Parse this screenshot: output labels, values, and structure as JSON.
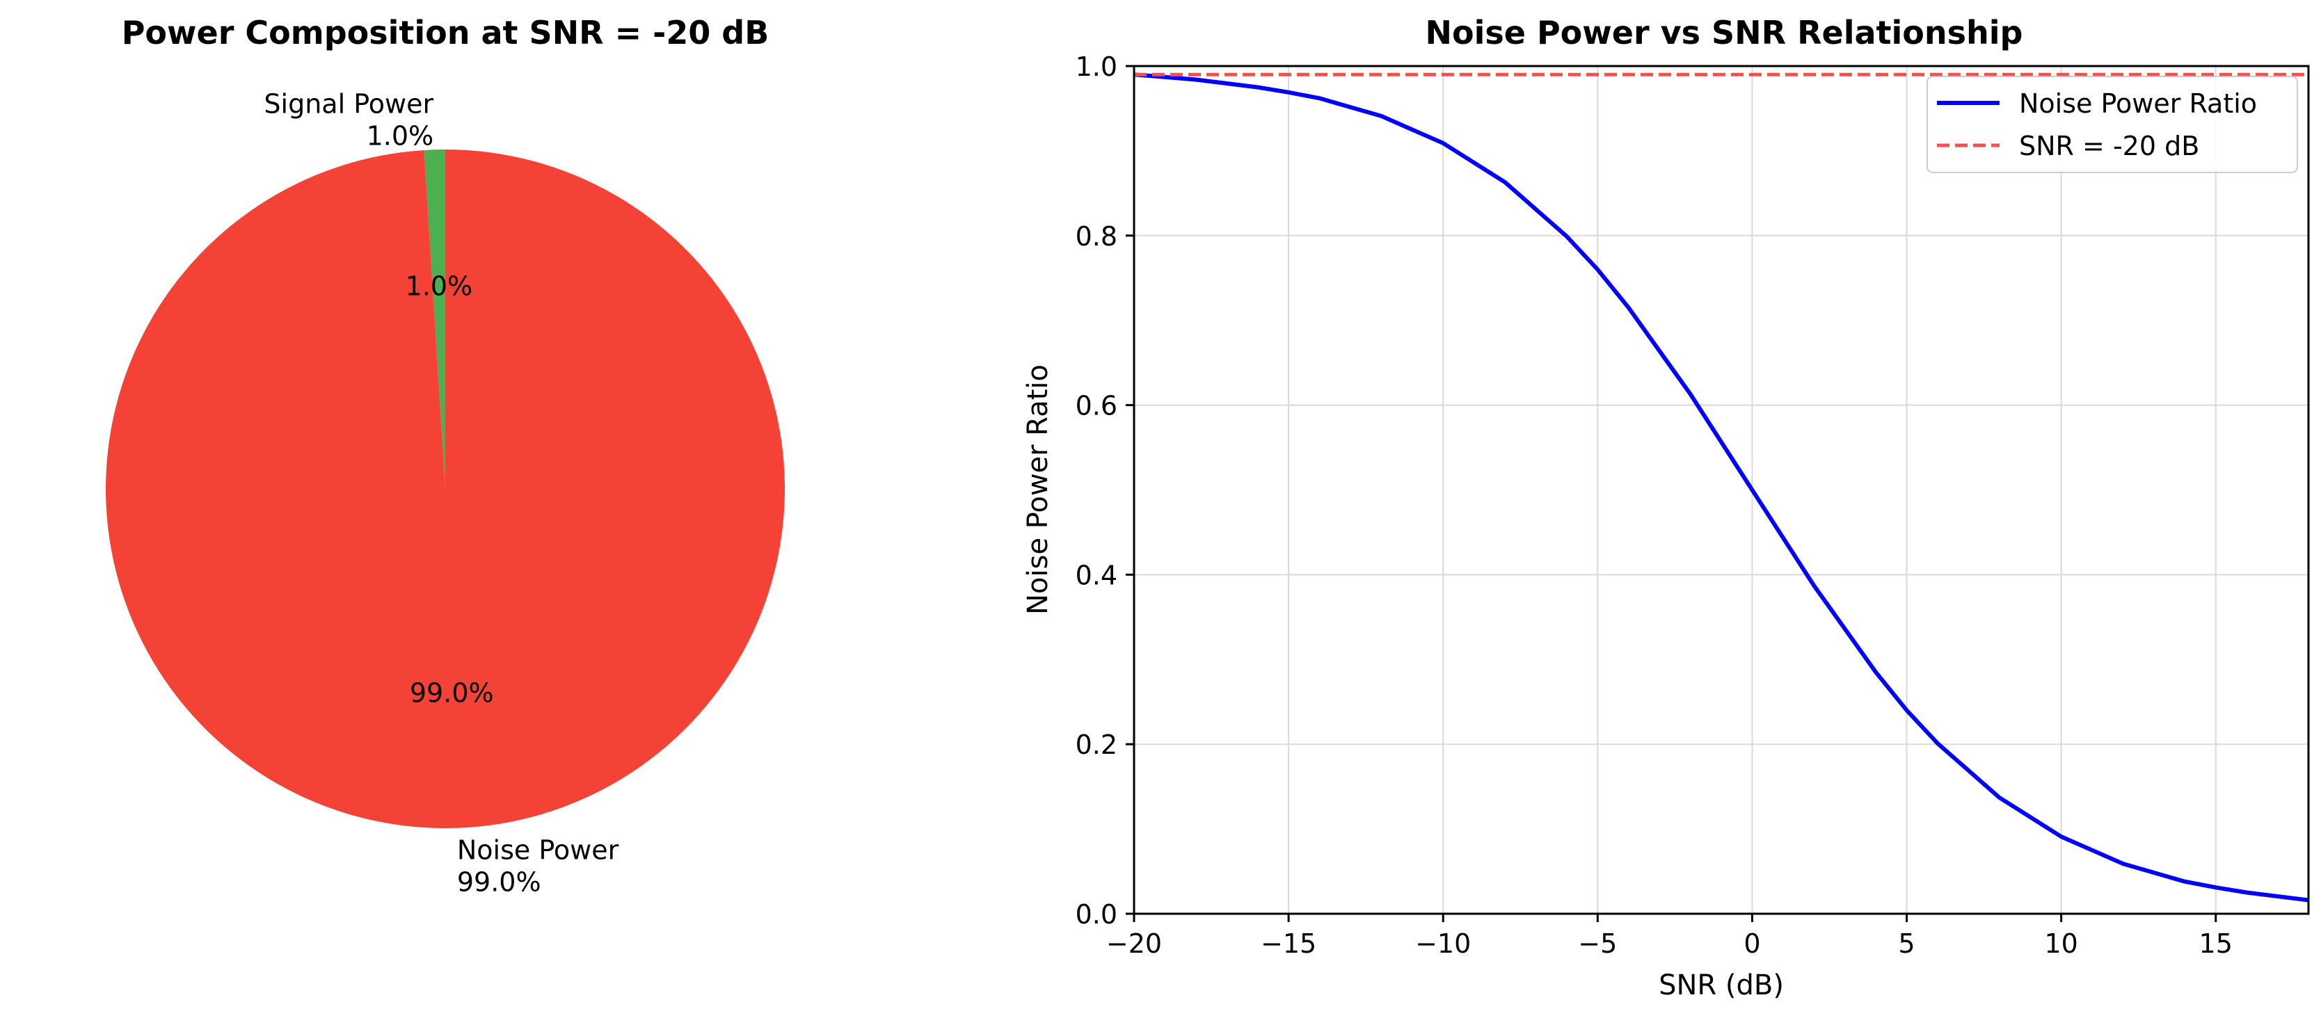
{
  "colors": {
    "signal": "#4caf50",
    "noise": "#f44336",
    "curve": "#0000ff",
    "ref_line": "#ff4d4d",
    "grid": "#d9d9d9",
    "axis": "#000000"
  },
  "chart_data": [
    {
      "type": "pie",
      "title": "Power Composition at SNR = -20 dB",
      "slices": [
        {
          "label": "Signal Power",
          "value": 1.0,
          "label_pct": "1.0%",
          "autopct": "1.0%",
          "color": "#4caf50"
        },
        {
          "label": "Noise Power",
          "value": 99.0,
          "label_pct": "99.0%",
          "autopct": "99.0%",
          "color": "#f44336"
        }
      ],
      "start_angle_deg": 90,
      "direction": "counterclockwise"
    },
    {
      "type": "line",
      "title": "Noise Power vs SNR Relationship",
      "xlabel": "SNR (dB)",
      "ylabel": "Noise Power Ratio",
      "xlim": [
        -20,
        18
      ],
      "ylim": [
        0.0,
        1.0
      ],
      "xticks": [
        -20,
        -15,
        -10,
        -5,
        0,
        5,
        10,
        15
      ],
      "xtick_labels": [
        "−20",
        "−15",
        "−10",
        "−5",
        "0",
        "5",
        "10",
        "15"
      ],
      "yticks": [
        0.0,
        0.2,
        0.4,
        0.6,
        0.8,
        1.0
      ],
      "ytick_labels": [
        "0.0",
        "0.2",
        "0.4",
        "0.6",
        "0.8",
        "1.0"
      ],
      "grid": true,
      "legend_position": "top-right",
      "series": [
        {
          "name": "Noise Power Ratio",
          "style": "solid",
          "color": "#0000ff",
          "x": [
            -20,
            -18,
            -16,
            -15,
            -14,
            -12,
            -10,
            -8,
            -6,
            -5,
            -4,
            -2,
            0,
            2,
            4,
            5,
            6,
            8,
            10,
            12,
            14,
            15,
            16,
            18
          ],
          "y": [
            0.99,
            0.984,
            0.975,
            0.969,
            0.962,
            0.941,
            0.909,
            0.863,
            0.799,
            0.76,
            0.715,
            0.613,
            0.5,
            0.387,
            0.285,
            0.24,
            0.201,
            0.137,
            0.091,
            0.059,
            0.038,
            0.031,
            0.025,
            0.016
          ]
        },
        {
          "name": "SNR = -20 dB",
          "style": "dashed",
          "color": "#ff4d4d",
          "x": [
            -20,
            18
          ],
          "y": [
            0.99,
            0.99
          ]
        }
      ]
    }
  ]
}
